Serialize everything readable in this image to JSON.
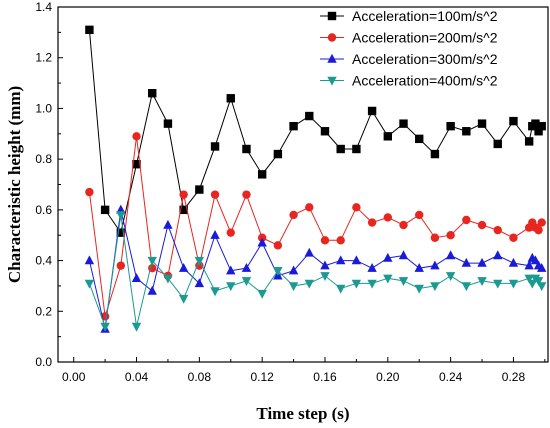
{
  "chart_data": {
    "type": "line",
    "title": "",
    "xlabel": "Time step (s)",
    "ylabel": "Characteristic height (mm)",
    "xlim": [
      -0.01,
      0.302
    ],
    "ylim": [
      0.0,
      1.4
    ],
    "xticks": [
      "0.00",
      "0.04",
      "0.08",
      "0.12",
      "0.16",
      "0.20",
      "0.24",
      "0.28"
    ],
    "xtick_values": [
      0.0,
      0.04,
      0.08,
      0.12,
      0.16,
      0.2,
      0.24,
      0.28
    ],
    "yticks": [
      "0.0",
      "0.2",
      "0.4",
      "0.6",
      "0.8",
      "1.0",
      "1.2",
      "1.4"
    ],
    "ytick_values": [
      0.0,
      0.2,
      0.4,
      0.6,
      0.8,
      1.0,
      1.2,
      1.4
    ],
    "legend_position": "top-right",
    "grid": false,
    "x": [
      0.01,
      0.02,
      0.03,
      0.04,
      0.05,
      0.06,
      0.07,
      0.08,
      0.09,
      0.1,
      0.11,
      0.12,
      0.13,
      0.14,
      0.15,
      0.16,
      0.17,
      0.18,
      0.19,
      0.2,
      0.21,
      0.22,
      0.23,
      0.24,
      0.25,
      0.26,
      0.27,
      0.28,
      0.29,
      0.292,
      0.294,
      0.296,
      0.298
    ],
    "series": [
      {
        "name": "Acceleration=100m/s^2",
        "color": "#000000",
        "marker": "square",
        "values": [
          1.31,
          0.6,
          0.51,
          0.78,
          1.06,
          0.94,
          0.6,
          0.68,
          0.85,
          1.04,
          0.84,
          0.74,
          0.82,
          0.93,
          0.97,
          0.91,
          0.84,
          0.84,
          0.99,
          0.89,
          0.94,
          0.88,
          0.82,
          0.93,
          0.91,
          0.94,
          0.86,
          0.95,
          0.87,
          0.93,
          0.94,
          0.91,
          0.93
        ]
      },
      {
        "name": "Acceleration=200m/s^2",
        "color": "#e8251f",
        "marker": "circle",
        "values": [
          0.67,
          0.18,
          0.38,
          0.89,
          0.37,
          0.34,
          0.66,
          0.38,
          0.66,
          0.51,
          0.66,
          0.49,
          0.46,
          0.58,
          0.61,
          0.48,
          0.48,
          0.61,
          0.55,
          0.57,
          0.54,
          0.58,
          0.49,
          0.5,
          0.56,
          0.54,
          0.52,
          0.49,
          0.53,
          0.55,
          0.53,
          0.52,
          0.55
        ]
      },
      {
        "name": "Acceleration=300m/s^2",
        "color": "#1a1ad9",
        "marker": "triangle-up",
        "values": [
          0.4,
          0.13,
          0.6,
          0.33,
          0.28,
          0.54,
          0.37,
          0.31,
          0.5,
          0.36,
          0.37,
          0.47,
          0.34,
          0.36,
          0.43,
          0.38,
          0.4,
          0.4,
          0.37,
          0.41,
          0.42,
          0.37,
          0.38,
          0.42,
          0.39,
          0.39,
          0.42,
          0.39,
          0.38,
          0.41,
          0.4,
          0.38,
          0.37
        ]
      },
      {
        "name": "Acceleration=400m/s^2",
        "color": "#1c9a92",
        "marker": "triangle-down",
        "values": [
          0.31,
          0.14,
          0.58,
          0.14,
          0.4,
          0.33,
          0.25,
          0.4,
          0.28,
          0.3,
          0.32,
          0.27,
          0.36,
          0.3,
          0.31,
          0.34,
          0.29,
          0.31,
          0.31,
          0.33,
          0.32,
          0.29,
          0.3,
          0.34,
          0.3,
          0.32,
          0.31,
          0.31,
          0.33,
          0.31,
          0.33,
          0.32,
          0.3
        ]
      }
    ]
  }
}
